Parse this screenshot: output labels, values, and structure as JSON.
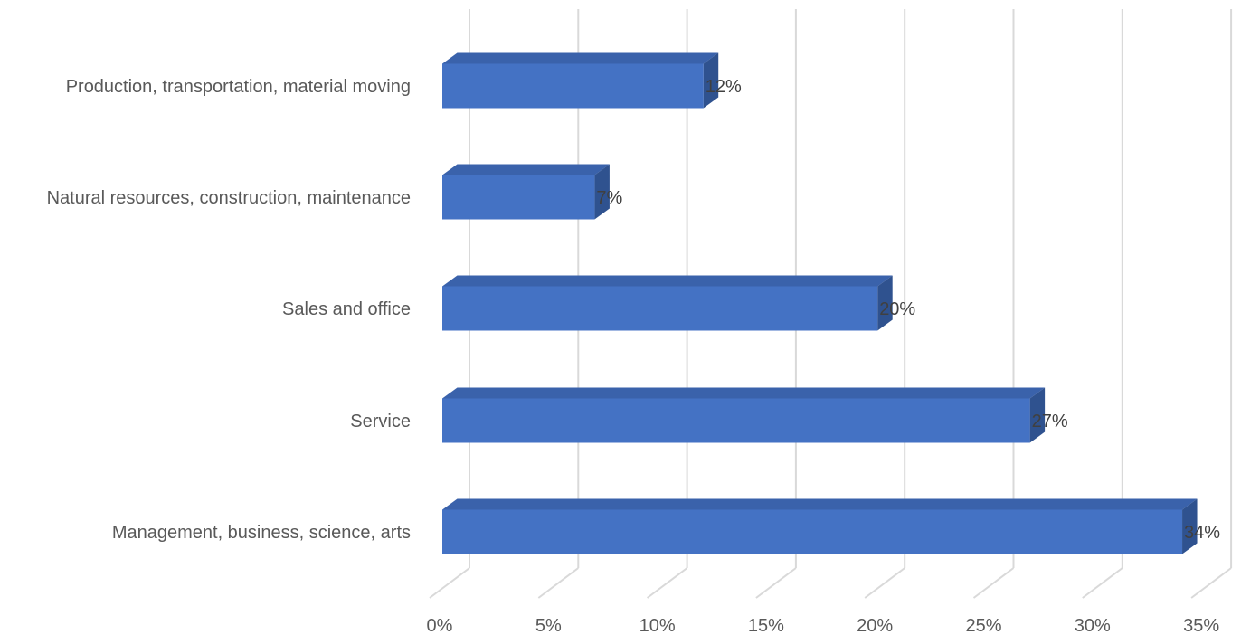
{
  "chart_data": {
    "type": "bar",
    "orientation": "horizontal",
    "style": "3d-clustered",
    "categories": [
      "Management, business, science, arts",
      "Service",
      "Sales and office",
      "Natural resources, construction, maintenance",
      "Production, transportation, material moving"
    ],
    "values": [
      34,
      27,
      20,
      7,
      12
    ],
    "data_labels": [
      "34%",
      "27%",
      "20%",
      "7%",
      "12%"
    ],
    "x_ticks": [
      "0%",
      "5%",
      "10%",
      "15%",
      "20%",
      "25%",
      "30%",
      "35%"
    ],
    "xlim": [
      0,
      35
    ],
    "value_unit": "percent",
    "title": "",
    "xlabel": "",
    "ylabel": "",
    "grid": "vertical",
    "legend": "none",
    "colors": {
      "bar_front": "#4472c4",
      "bar_top": "#3a62ab",
      "bar_side": "#2f528f",
      "gridline": "#d9d9d9"
    }
  }
}
